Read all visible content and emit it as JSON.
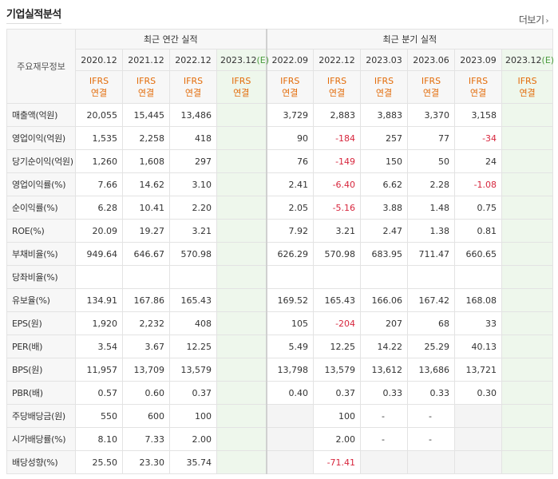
{
  "section": {
    "title": "기업실적분석",
    "more_label": "더보기",
    "more_arrow": "›"
  },
  "header": {
    "corner_label": "주요재무정보",
    "annual_group": "최근 연간 실적",
    "quarter_group": "최근 분기 실적",
    "annual_periods": [
      "2020.12",
      "2021.12",
      "2022.12",
      "2023.12(E)"
    ],
    "quarter_periods": [
      "2022.09",
      "2022.12",
      "2023.03",
      "2023.06",
      "2023.09",
      "2023.12(E)"
    ],
    "basis_top": "IFRS",
    "basis_bottom": "연결"
  },
  "rows": [
    {
      "label": "매출액(억원)",
      "values": [
        "20,055",
        "15,445",
        "13,486",
        "",
        "3,729",
        "2,883",
        "3,883",
        "3,370",
        "3,158",
        ""
      ]
    },
    {
      "label": "영업이익(억원)",
      "values": [
        "1,535",
        "2,258",
        "418",
        "",
        "90",
        "-184",
        "257",
        "77",
        "-34",
        ""
      ]
    },
    {
      "label": "당기순이익(억원)",
      "values": [
        "1,260",
        "1,608",
        "297",
        "",
        "76",
        "-149",
        "150",
        "50",
        "24",
        ""
      ]
    },
    {
      "label": "영업이익률(%)",
      "values": [
        "7.66",
        "14.62",
        "3.10",
        "",
        "2.41",
        "-6.40",
        "6.62",
        "2.28",
        "-1.08",
        ""
      ]
    },
    {
      "label": "순이익률(%)",
      "values": [
        "6.28",
        "10.41",
        "2.20",
        "",
        "2.05",
        "-5.16",
        "3.88",
        "1.48",
        "0.75",
        ""
      ]
    },
    {
      "label": "ROE(%)",
      "values": [
        "20.09",
        "19.27",
        "3.21",
        "",
        "7.92",
        "3.21",
        "2.47",
        "1.38",
        "0.81",
        ""
      ]
    },
    {
      "label": "부채비율(%)",
      "values": [
        "949.64",
        "646.67",
        "570.98",
        "",
        "626.29",
        "570.98",
        "683.95",
        "711.47",
        "660.65",
        ""
      ]
    },
    {
      "label": "당좌비율(%)",
      "values": [
        "",
        "",
        "",
        "",
        "",
        "",
        "",
        "",
        "",
        ""
      ]
    },
    {
      "label": "유보율(%)",
      "values": [
        "134.91",
        "167.86",
        "165.43",
        "",
        "169.52",
        "165.43",
        "166.06",
        "167.42",
        "168.08",
        ""
      ]
    },
    {
      "label": "EPS(원)",
      "values": [
        "1,920",
        "2,232",
        "408",
        "",
        "105",
        "-204",
        "207",
        "68",
        "33",
        ""
      ]
    },
    {
      "label": "PER(배)",
      "values": [
        "3.54",
        "3.67",
        "12.25",
        "",
        "5.49",
        "12.25",
        "14.22",
        "25.29",
        "40.13",
        ""
      ]
    },
    {
      "label": "BPS(원)",
      "values": [
        "11,957",
        "13,709",
        "13,579",
        "",
        "13,798",
        "13,579",
        "13,612",
        "13,686",
        "13,721",
        ""
      ]
    },
    {
      "label": "PBR(배)",
      "values": [
        "0.57",
        "0.60",
        "0.37",
        "",
        "0.40",
        "0.37",
        "0.33",
        "0.33",
        "0.30",
        ""
      ]
    },
    {
      "label": "주당배당금(원)",
      "values": [
        "550",
        "600",
        "100",
        "",
        "",
        "100",
        "-",
        "-",
        "",
        ""
      ]
    },
    {
      "label": "시가배당률(%)",
      "values": [
        "8.10",
        "7.33",
        "2.00",
        "",
        "",
        "2.00",
        "-",
        "-",
        "",
        ""
      ]
    },
    {
      "label": "배당성향(%)",
      "values": [
        "25.50",
        "23.30",
        "35.74",
        "",
        "",
        "-71.41",
        "",
        "",
        "",
        ""
      ]
    }
  ],
  "colors": {
    "negative": "#d7263d",
    "basis": "#e36c0a",
    "estimate_bg": "#eef7ec"
  }
}
